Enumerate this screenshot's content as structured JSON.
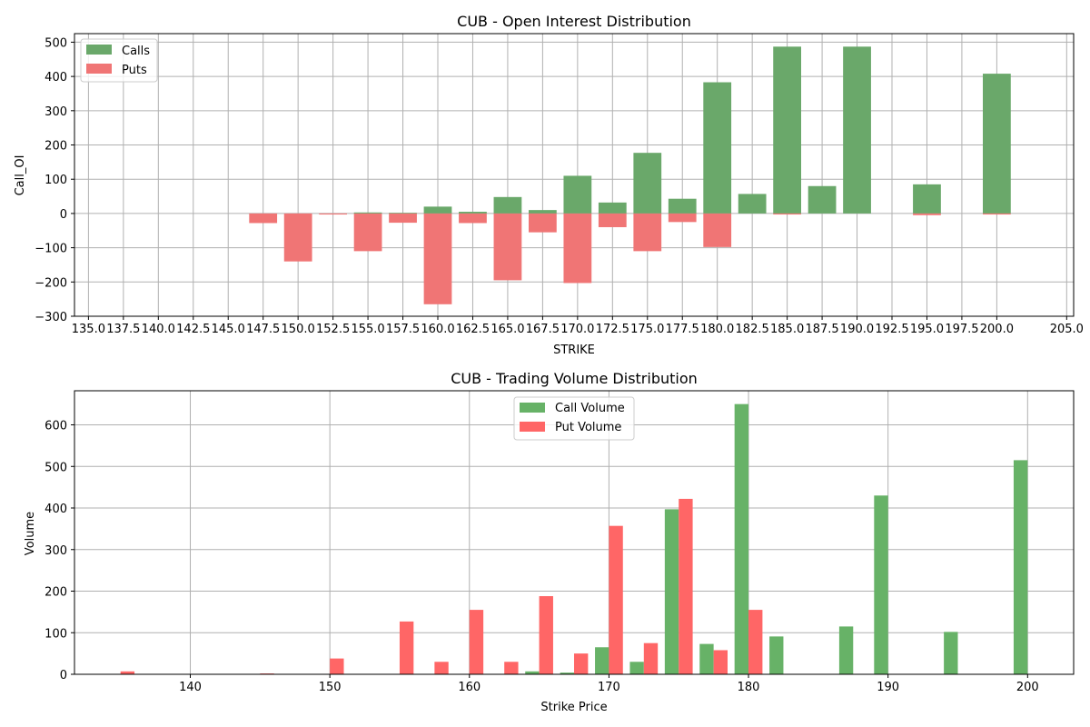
{
  "chart_data": [
    {
      "type": "bar",
      "title": "CUB - Open Interest Distribution",
      "xlabel": "STRIKE",
      "ylabel": "Call_OI",
      "xlim": [
        134,
        205.5
      ],
      "ylim": [
        -300,
        525
      ],
      "xticks": [
        135.0,
        137.5,
        140.0,
        142.5,
        145.0,
        147.5,
        150.0,
        152.5,
        155.0,
        157.5,
        160.0,
        162.5,
        165.0,
        167.5,
        170.0,
        172.5,
        175.0,
        177.5,
        180.0,
        182.5,
        185.0,
        187.5,
        190.0,
        192.5,
        195.0,
        197.5,
        200.0,
        205.0
      ],
      "xtick_labels": [
        "135.0",
        "137.5",
        "140.0",
        "142.5",
        "145.0",
        "147.5",
        "150.0",
        "152.5",
        "155.0",
        "157.5",
        "160.0",
        "162.5",
        "165.0",
        "167.5",
        "170.0",
        "172.5",
        "175.0",
        "177.5",
        "180.0",
        "182.5",
        "185.0",
        "187.5",
        "190.0",
        "192.5",
        "195.0",
        "197.5",
        "200.0",
        "205.0"
      ],
      "yticks": [
        -300,
        -200,
        -100,
        0,
        100,
        200,
        300,
        400,
        500
      ],
      "ytick_labels": [
        "−300",
        "−200",
        "−100",
        "0",
        "100",
        "200",
        "300",
        "400",
        "500"
      ],
      "grid": true,
      "legend_position": "top-left",
      "bar_width": 2,
      "series": [
        {
          "name": "Calls",
          "color": "#6aa86a",
          "x": [
            147.5,
            150,
            152.5,
            155,
            157.5,
            160,
            162.5,
            165,
            167.5,
            170,
            172.5,
            175,
            177.5,
            180,
            182.5,
            185,
            187.5,
            190,
            195,
            200
          ],
          "values": [
            0,
            0,
            0,
            3,
            2,
            20,
            5,
            48,
            10,
            110,
            32,
            177,
            43,
            383,
            57,
            487,
            80,
            487,
            85,
            408
          ]
        },
        {
          "name": "Puts",
          "color": "#f07575",
          "x": [
            147.5,
            150,
            152.5,
            155,
            157.5,
            160,
            162.5,
            165,
            167.5,
            170,
            172.5,
            175,
            177.5,
            180,
            182.5,
            185,
            187.5,
            190,
            195,
            200
          ],
          "values": [
            -28,
            -140,
            -3,
            -110,
            -27,
            -265,
            -28,
            -195,
            -55,
            -203,
            -40,
            -110,
            -25,
            -98,
            0,
            -3,
            0,
            0,
            -5,
            -3
          ]
        }
      ]
    },
    {
      "type": "bar",
      "title": "CUB - Trading Volume Distribution",
      "xlabel": "Strike Price",
      "ylabel": "Volume",
      "xlim": [
        131.7,
        203.3
      ],
      "ylim": [
        0,
        682
      ],
      "xticks": [
        140,
        150,
        160,
        170,
        180,
        190,
        200
      ],
      "xtick_labels": [
        "140",
        "150",
        "160",
        "170",
        "180",
        "190",
        "200"
      ],
      "yticks": [
        0,
        100,
        200,
        300,
        400,
        500,
        600
      ],
      "ytick_labels": [
        "0",
        "100",
        "200",
        "300",
        "400",
        "500",
        "600"
      ],
      "grid": true,
      "legend_position": "top-center",
      "bar_width": 1,
      "series": [
        {
          "name": "Call Volume",
          "color": "#67b267",
          "x": [
            164.5,
            167,
            169.5,
            172,
            174.5,
            177,
            179.5,
            182,
            187,
            189.5,
            194.5,
            199.5
          ],
          "values": [
            7,
            4,
            65,
            30,
            397,
            73,
            650,
            91,
            115,
            430,
            102,
            515
          ]
        },
        {
          "name": "Put Volume",
          "color": "#ff6666",
          "x": [
            135.5,
            145.5,
            150.5,
            155.5,
            158,
            160.5,
            163,
            165.5,
            168,
            170.5,
            173,
            175.5,
            178,
            180.5
          ],
          "values": [
            7,
            2,
            38,
            127,
            30,
            155,
            30,
            188,
            50,
            357,
            75,
            422,
            58,
            155
          ]
        }
      ]
    }
  ]
}
